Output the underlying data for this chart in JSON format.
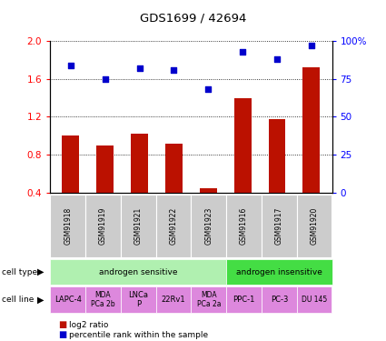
{
  "title": "GDS1699 / 42694",
  "samples": [
    "GSM91918",
    "GSM91919",
    "GSM91921",
    "GSM91922",
    "GSM91923",
    "GSM91916",
    "GSM91917",
    "GSM91920"
  ],
  "log2_ratio": [
    1.0,
    0.9,
    1.02,
    0.92,
    0.45,
    1.4,
    1.18,
    1.72
  ],
  "percentile_rank": [
    84,
    75,
    82,
    81,
    68,
    93,
    88,
    97
  ],
  "ylim_left": [
    0.4,
    2.0
  ],
  "ylim_right": [
    0,
    100
  ],
  "yticks_left": [
    0.4,
    0.8,
    1.2,
    1.6,
    2.0
  ],
  "yticks_right": [
    0,
    25,
    50,
    75,
    100
  ],
  "ytick_labels_right": [
    "0",
    "25",
    "50",
    "75",
    "100%"
  ],
  "bar_color": "#bb1100",
  "dot_color": "#0000cc",
  "cell_type_groups": [
    {
      "label": "androgen sensitive",
      "start": 0,
      "end": 4,
      "color": "#b0f0b0"
    },
    {
      "label": "androgen insensitive",
      "start": 5,
      "end": 7,
      "color": "#44dd44"
    }
  ],
  "cell_lines": [
    {
      "label": "LAPC-4",
      "col": 0,
      "fontsize": 6
    },
    {
      "label": "MDA\nPCa 2b",
      "col": 1,
      "fontsize": 5.5
    },
    {
      "label": "LNCa\nP",
      "col": 2,
      "fontsize": 6
    },
    {
      "label": "22Rv1",
      "col": 3,
      "fontsize": 6
    },
    {
      "label": "MDA\nPCa 2a",
      "col": 4,
      "fontsize": 5.5
    },
    {
      "label": "PPC-1",
      "col": 5,
      "fontsize": 6
    },
    {
      "label": "PC-3",
      "col": 6,
      "fontsize": 6
    },
    {
      "label": "DU 145",
      "col": 7,
      "fontsize": 5.5
    }
  ],
  "cell_line_color": "#dd88dd",
  "gsm_bg_color": "#cccccc",
  "legend_red_label": "log2 ratio",
  "legend_blue_label": "percentile rank within the sample"
}
